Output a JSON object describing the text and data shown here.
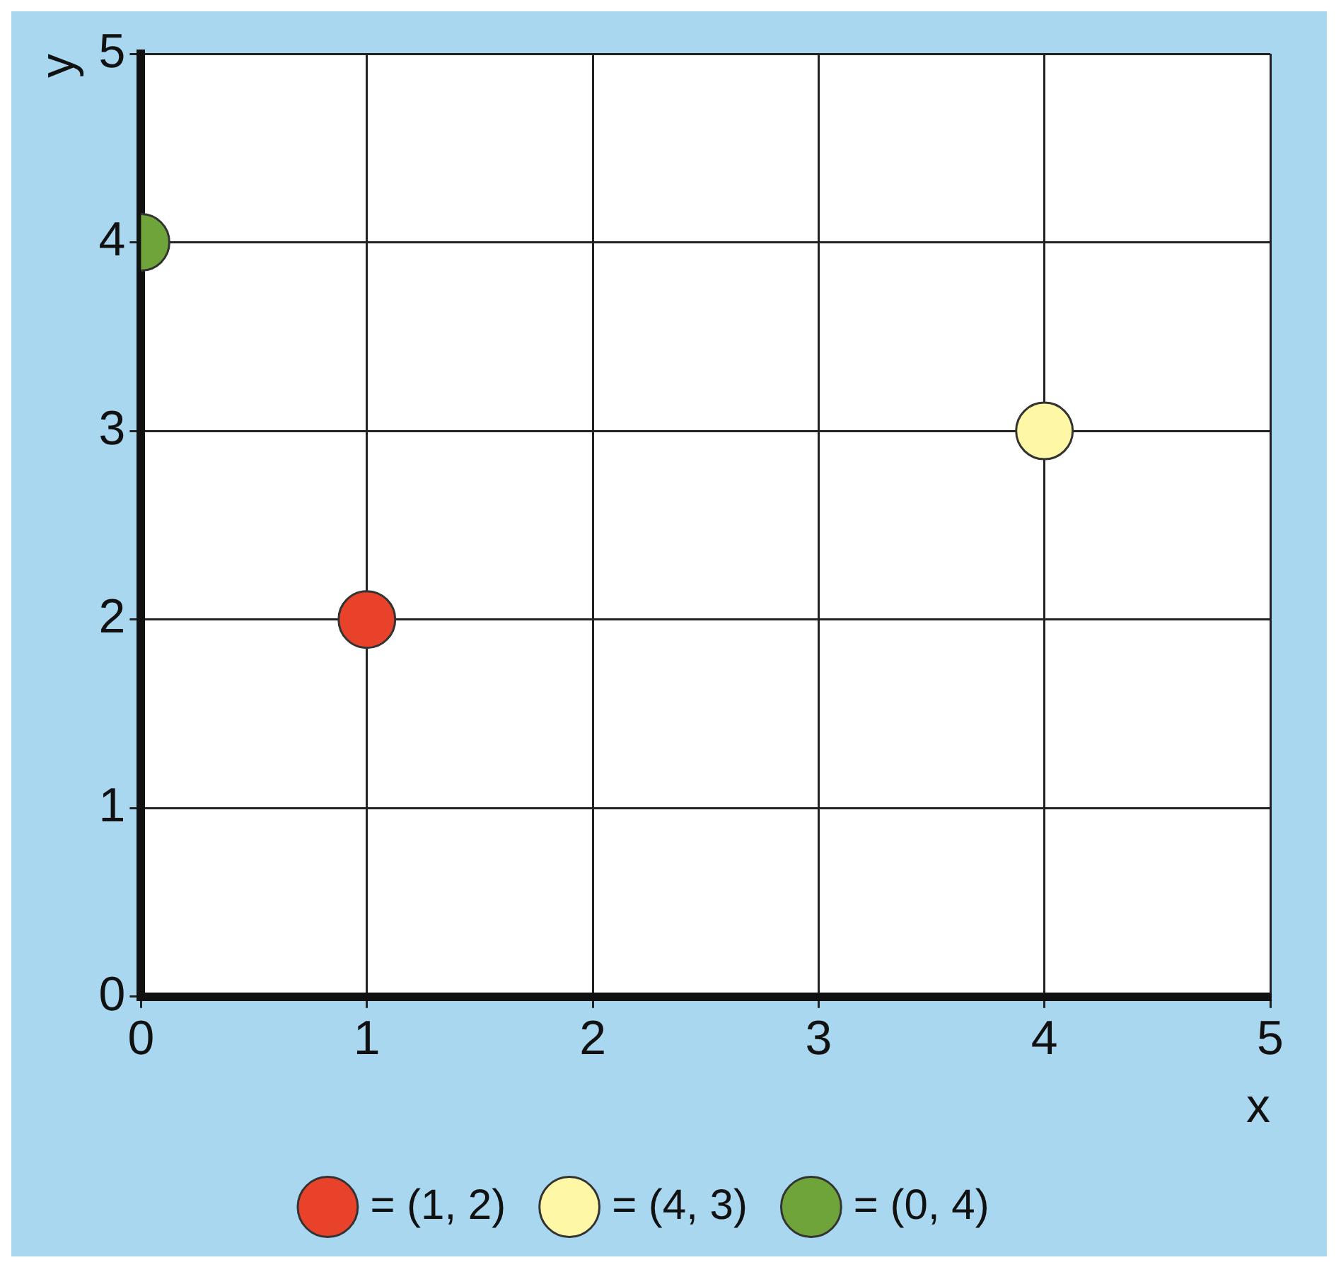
{
  "chart_data": {
    "type": "scatter",
    "xlabel": "x",
    "ylabel": "y",
    "series": [
      {
        "name": "= (1, 2)",
        "color": "#e8432a",
        "x": [
          1
        ],
        "values": [
          2
        ]
      },
      {
        "name": "= (4, 3)",
        "color": "#fdf7a6",
        "x": [
          4
        ],
        "values": [
          3
        ]
      },
      {
        "name": "= (0, 4)",
        "color": "#6fa43a",
        "x": [
          0
        ],
        "values": [
          4
        ]
      }
    ],
    "xlim": [
      0,
      5
    ],
    "ylim": [
      0,
      5
    ],
    "xticks": [
      0,
      1,
      2,
      3,
      4,
      5
    ],
    "yticks": [
      0,
      1,
      2,
      3,
      4,
      5
    ],
    "grid": true,
    "legend": "bottom",
    "marker": "circle"
  }
}
